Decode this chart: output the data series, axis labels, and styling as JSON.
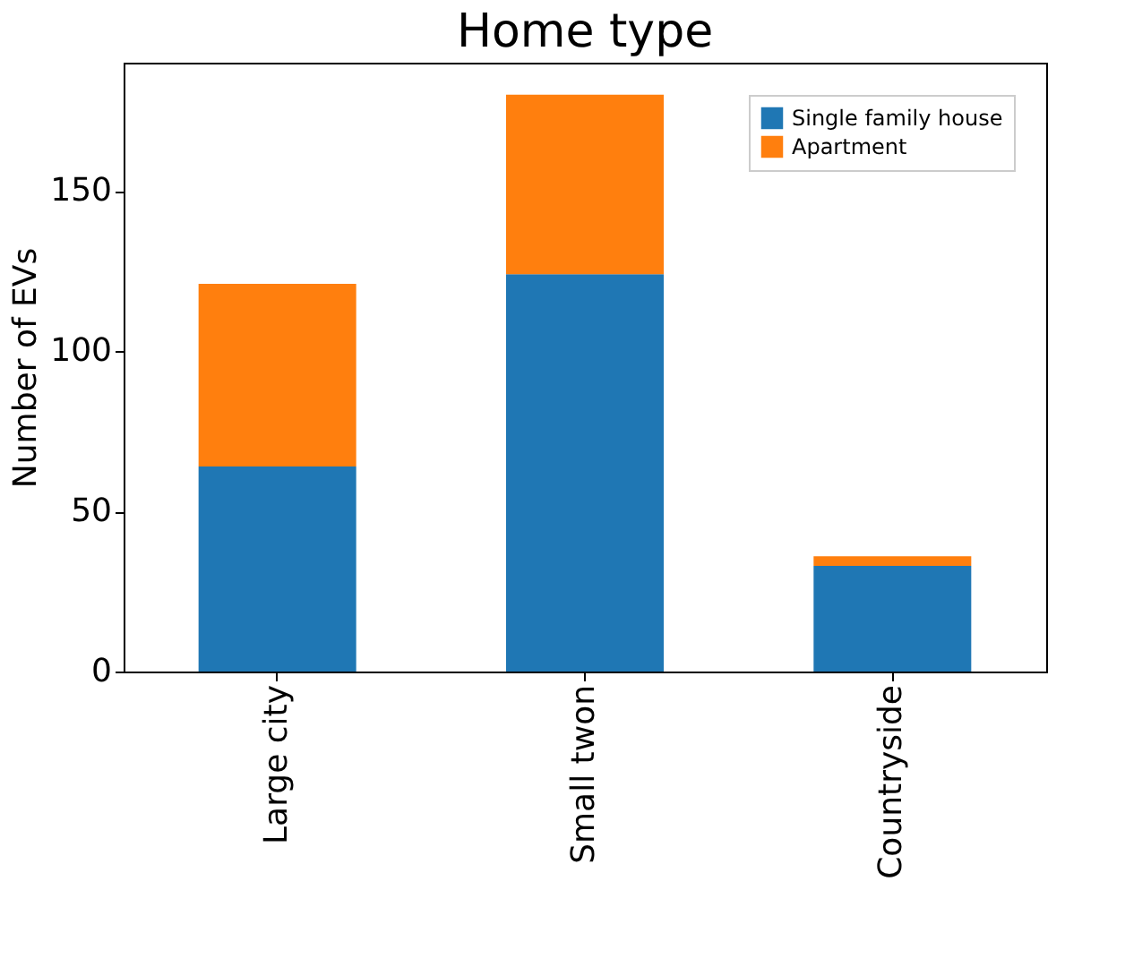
{
  "chart_data": {
    "type": "bar",
    "title": "Home type",
    "ylabel": "Number of EVs",
    "categories": [
      "Large city",
      "Small twon",
      "Countryside"
    ],
    "stacked": true,
    "series": [
      {
        "name": "Single family house",
        "color": "#1f77b4",
        "values": [
          64,
          124,
          33
        ]
      },
      {
        "name": "Apartment",
        "color": "#ff7f0e",
        "values": [
          57,
          56,
          3
        ]
      }
    ],
    "ylim": [
      0,
      190
    ],
    "yticks": [
      0,
      50,
      100,
      150
    ],
    "grid": false,
    "legend": "top right"
  }
}
